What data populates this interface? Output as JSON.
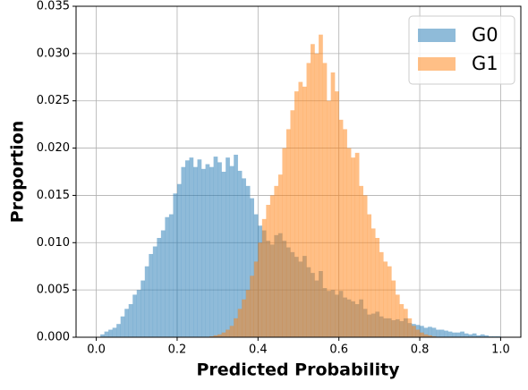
{
  "chart_data": {
    "type": "histogram",
    "xlabel": "Predicted Probability",
    "ylabel": "Proportion",
    "bins": [
      0,
      0.01,
      0.02,
      0.03,
      0.04,
      0.05,
      0.06,
      0.07,
      0.08,
      0.09,
      0.1,
      0.11,
      0.12,
      0.13,
      0.14,
      0.15,
      0.16,
      0.17,
      0.18,
      0.19,
      0.2,
      0.21,
      0.22,
      0.23,
      0.24,
      0.25,
      0.26,
      0.27,
      0.28,
      0.29,
      0.3,
      0.31,
      0.32,
      0.33,
      0.34,
      0.35,
      0.36,
      0.37,
      0.38,
      0.39,
      0.4,
      0.41,
      0.42,
      0.43,
      0.44,
      0.45,
      0.46,
      0.47,
      0.48,
      0.49,
      0.5,
      0.51,
      0.52,
      0.53,
      0.54,
      0.55,
      0.56,
      0.57,
      0.58,
      0.59,
      0.6,
      0.61,
      0.62,
      0.63,
      0.64,
      0.65,
      0.66,
      0.67,
      0.68,
      0.69,
      0.7,
      0.71,
      0.72,
      0.73,
      0.74,
      0.75,
      0.76,
      0.77,
      0.78,
      0.79,
      0.8,
      0.81,
      0.82,
      0.83,
      0.84,
      0.85,
      0.86,
      0.87,
      0.88,
      0.89,
      0.9,
      0.91,
      0.92,
      0.93,
      0.94,
      0.95,
      0.96,
      0.97,
      0.98,
      0.99,
      1
    ],
    "series": [
      {
        "name": "G0",
        "color": "#1f77b4",
        "values": [
          0,
          0.0003,
          0.0006,
          0.0008,
          0.001,
          0.0014,
          0.0022,
          0.003,
          0.0035,
          0.0045,
          0.005,
          0.006,
          0.0075,
          0.0088,
          0.0096,
          0.0105,
          0.0113,
          0.0127,
          0.013,
          0.0152,
          0.0162,
          0.018,
          0.0187,
          0.019,
          0.018,
          0.0188,
          0.0178,
          0.0183,
          0.018,
          0.0191,
          0.0185,
          0.0175,
          0.019,
          0.0181,
          0.0193,
          0.0176,
          0.0168,
          0.016,
          0.0147,
          0.013,
          0.0118,
          0.0113,
          0.0102,
          0.0098,
          0.0108,
          0.011,
          0.0102,
          0.0095,
          0.009,
          0.0085,
          0.008,
          0.0086,
          0.0074,
          0.0068,
          0.006,
          0.007,
          0.0052,
          0.0049,
          0.005,
          0.0045,
          0.0049,
          0.0042,
          0.004,
          0.0038,
          0.0035,
          0.004,
          0.003,
          0.0024,
          0.0025,
          0.0027,
          0.0022,
          0.002,
          0.002,
          0.0018,
          0.0019,
          0.0017,
          0.002,
          0.0015,
          0.0014,
          0.0013,
          0.0012,
          0.001,
          0.0011,
          0.001,
          0.0008,
          0.0008,
          0.0007,
          0.0006,
          0.0005,
          0.0005,
          0.0006,
          0.0004,
          0.0003,
          0.0004,
          0.0002,
          0.0003,
          0.0002,
          0.0001,
          0.0001,
          0.0001
        ]
      },
      {
        "name": "G1",
        "color": "#ff7f0e",
        "values": [
          0,
          0,
          0,
          0,
          0,
          0,
          0,
          0,
          0,
          0,
          0,
          0,
          0,
          0,
          0,
          0,
          0,
          0,
          0,
          0,
          0,
          0,
          0,
          0,
          0,
          0,
          0,
          0,
          0.0001,
          0.0002,
          0.0003,
          0.0005,
          0.0008,
          0.0012,
          0.002,
          0.003,
          0.004,
          0.005,
          0.0065,
          0.008,
          0.01,
          0.0125,
          0.014,
          0.015,
          0.016,
          0.0172,
          0.02,
          0.022,
          0.024,
          0.026,
          0.027,
          0.0265,
          0.029,
          0.031,
          0.03,
          0.032,
          0.029,
          0.025,
          0.028,
          0.026,
          0.023,
          0.022,
          0.02,
          0.019,
          0.0195,
          0.016,
          0.015,
          0.013,
          0.0115,
          0.0105,
          0.009,
          0.008,
          0.0075,
          0.006,
          0.0045,
          0.0035,
          0.003,
          0.002,
          0.0012,
          0.0008,
          0.0005,
          0.0003,
          0.0002,
          0.0001,
          0,
          0,
          0,
          0,
          0,
          0,
          0,
          0,
          0,
          0,
          0,
          0,
          0,
          0,
          0,
          0
        ]
      }
    ],
    "alpha": 0.5,
    "xlim": [
      -0.05,
      1.05
    ],
    "xticks": [
      {
        "value": 0,
        "label": "0.0"
      },
      {
        "value": 0.2,
        "label": "0.2"
      },
      {
        "value": 0.4,
        "label": "0.4"
      },
      {
        "value": 0.6,
        "label": "0.6"
      },
      {
        "value": 0.8,
        "label": "0.8"
      },
      {
        "value": 1,
        "label": "1.0"
      }
    ],
    "ylim": [
      0,
      0.035
    ],
    "yticks": [
      {
        "value": 0,
        "label": "0.000"
      },
      {
        "value": 0.005,
        "label": "0.005"
      },
      {
        "value": 0.01,
        "label": "0.010"
      },
      {
        "value": 0.015,
        "label": "0.015"
      },
      {
        "value": 0.02,
        "label": "0.020"
      },
      {
        "value": 0.025,
        "label": "0.025"
      },
      {
        "value": 0.03,
        "label": "0.030"
      },
      {
        "value": 0.035,
        "label": "0.035"
      }
    ],
    "grid": true,
    "legend": "upper right"
  }
}
